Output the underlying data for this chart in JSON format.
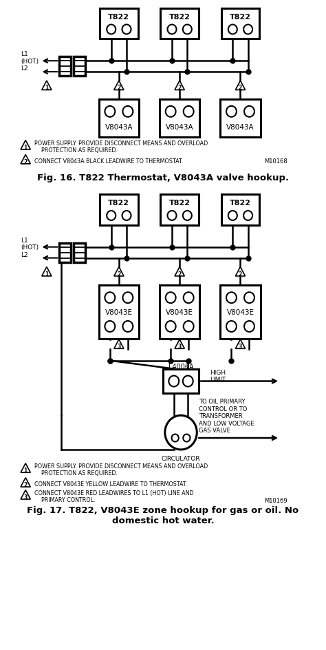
{
  "title1": "Fig. 16. T822 Thermostat, V8043A valve hookup.",
  "title2": "Fig. 17. T822, V8043E zone hookup for gas or oil. No\ndomestic hot water.",
  "note1_1": "POWER SUPPLY. PROVIDE DISCONNECT MEANS AND OVERLOAD\n    PROTECTION AS REQUIRED.",
  "note1_2": "CONNECT V8043A BLACK LEADWIRE TO THERMOSTAT.",
  "note1_id": "M10168",
  "note2_1": "POWER SUPPLY. PROVIDE DISCONNECT MEANS AND OVERLOAD\n    PROTECTION AS REQUIRED.",
  "note2_2": "CONNECT V8043E YELLOW LEADWIRE TO THERMOSTAT.",
  "note2_3": "CONNECT V8043E RED LEADWIRES TO L1 (HOT) LINE AND\n    PRIMARY CONTROL.",
  "note2_id": "M10169",
  "bg_color": "#ffffff"
}
